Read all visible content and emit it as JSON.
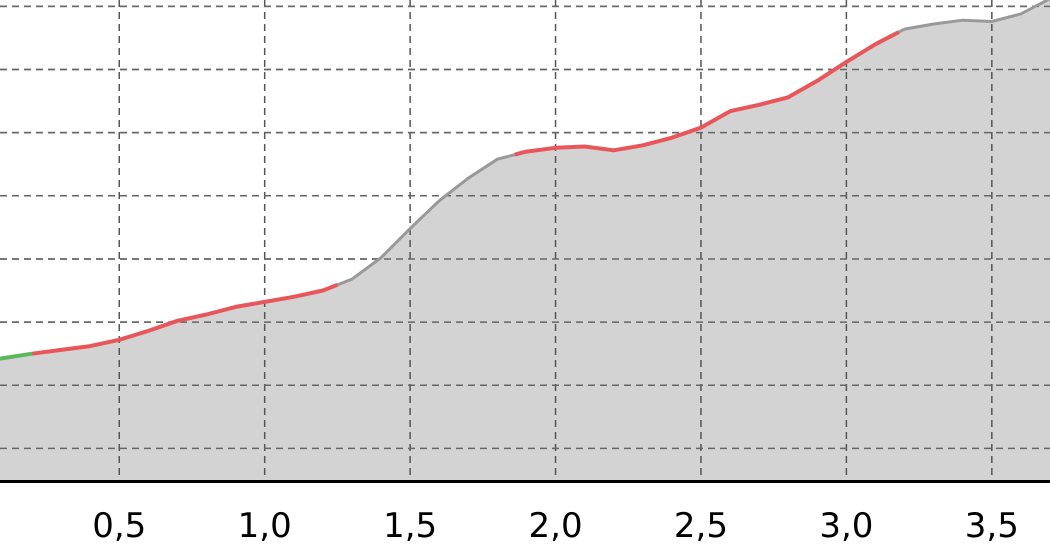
{
  "chart_data": {
    "type": "area",
    "title": "",
    "xlabel": "",
    "ylabel": "",
    "xlim": [
      0.09,
      3.7
    ],
    "ylim": [
      0,
      7.6
    ],
    "x_ticks": [
      0.5,
      1.0,
      1.5,
      2.0,
      2.5,
      3.0,
      3.5
    ],
    "x_tick_labels": [
      "0,5",
      "1,0",
      "1,5",
      "2,0",
      "2,5",
      "3,0",
      "3,5"
    ],
    "y_gridlines": [
      0.5,
      1.5,
      2.5,
      3.5,
      4.5,
      5.5,
      6.5,
      7.5
    ],
    "y_gridline_labels": [],
    "grid": true,
    "fill_color": "#d3d3d3",
    "line_color": "#999999",
    "series": [
      {
        "values": [
          [
            0.09,
            1.92
          ],
          [
            0.2,
            2.0
          ],
          [
            0.3,
            2.06
          ],
          [
            0.4,
            2.12
          ],
          [
            0.5,
            2.22
          ],
          [
            0.6,
            2.36
          ],
          [
            0.7,
            2.52
          ],
          [
            0.8,
            2.62
          ],
          [
            0.9,
            2.74
          ],
          [
            1.0,
            2.82
          ],
          [
            1.1,
            2.9
          ],
          [
            1.2,
            3.0
          ],
          [
            1.3,
            3.18
          ],
          [
            1.4,
            3.52
          ],
          [
            1.5,
            3.98
          ],
          [
            1.6,
            4.42
          ],
          [
            1.7,
            4.78
          ],
          [
            1.8,
            5.08
          ],
          [
            1.9,
            5.2
          ],
          [
            2.0,
            5.26
          ],
          [
            2.1,
            5.28
          ],
          [
            2.2,
            5.22
          ],
          [
            2.3,
            5.3
          ],
          [
            2.4,
            5.42
          ],
          [
            2.5,
            5.58
          ],
          [
            2.6,
            5.84
          ],
          [
            2.7,
            5.94
          ],
          [
            2.8,
            6.06
          ],
          [
            2.9,
            6.32
          ],
          [
            3.0,
            6.62
          ],
          [
            3.1,
            6.9
          ],
          [
            3.2,
            7.14
          ],
          [
            3.3,
            7.22
          ],
          [
            3.4,
            7.28
          ],
          [
            3.5,
            7.26
          ],
          [
            3.6,
            7.38
          ],
          [
            3.7,
            7.62
          ]
        ]
      }
    ],
    "highlights": [
      {
        "color": "#5cb85c",
        "from": 0.09,
        "to": 0.2
      },
      {
        "color": "#e8565a",
        "from": 0.2,
        "to": 1.25
      },
      {
        "color": "#e8565a",
        "from": 1.86,
        "to": 3.18
      }
    ]
  }
}
